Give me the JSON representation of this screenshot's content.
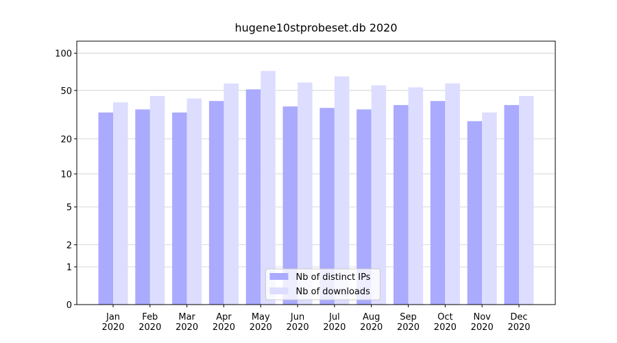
{
  "chart_data": {
    "type": "bar",
    "title": "hugene10stprobeset.db 2020",
    "categories": [
      "Jan\n2020",
      "Feb\n2020",
      "Mar\n2020",
      "Apr\n2020",
      "May\n2020",
      "Jun\n2020",
      "Jul\n2020",
      "Aug\n2020",
      "Sep\n2020",
      "Oct\n2020",
      "Nov\n2020",
      "Dec\n2020"
    ],
    "series": [
      {
        "name": "Nb of distinct IPs",
        "color": "#aaaaff",
        "values": [
          33,
          35,
          33,
          41,
          51,
          37,
          36,
          35,
          38,
          41,
          28,
          38
        ]
      },
      {
        "name": "Nb of downloads",
        "color": "#ddddff",
        "values": [
          40,
          45,
          43,
          57,
          72,
          58,
          65,
          55,
          53,
          57,
          33,
          45
        ]
      }
    ],
    "y_scale": "log1p",
    "ylim": [
      0,
      125
    ],
    "yticks": [
      0,
      1,
      2,
      5,
      10,
      20,
      50,
      100
    ],
    "grid": true,
    "legend": "lower center"
  }
}
